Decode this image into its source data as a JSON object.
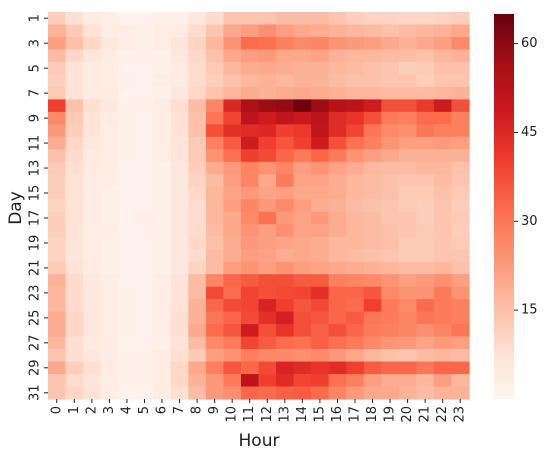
{
  "chart_data": {
    "type": "heatmap",
    "xlabel": "Hour",
    "ylabel": "Day",
    "x_categories": [
      "0",
      "1",
      "2",
      "3",
      "4",
      "5",
      "6",
      "7",
      "8",
      "9",
      "10",
      "11",
      "12",
      "13",
      "14",
      "15",
      "16",
      "17",
      "18",
      "19",
      "20",
      "21",
      "22",
      "23"
    ],
    "y_categories": [
      "1",
      "2",
      "3",
      "4",
      "5",
      "6",
      "7",
      "8",
      "9",
      "10",
      "11",
      "12",
      "13",
      "14",
      "15",
      "16",
      "17",
      "18",
      "19",
      "20",
      "21",
      "22",
      "23",
      "24",
      "25",
      "26",
      "27",
      "28",
      "29",
      "30",
      "31"
    ],
    "y_tick_labels_shown": [
      "1",
      "3",
      "5",
      "7",
      "9",
      "11",
      "13",
      "15",
      "17",
      "19",
      "21",
      "23",
      "25",
      "27",
      "29",
      "31"
    ],
    "colorbar": {
      "vmin": 0,
      "vmax": 65,
      "ticks": [
        15,
        30,
        45,
        60
      ],
      "colormap": "Reds"
    },
    "values": [
      [
        12,
        8,
        4,
        3,
        1,
        1,
        2,
        2,
        5,
        9,
        14,
        14,
        14,
        16,
        16,
        16,
        14,
        12,
        11,
        11,
        10,
        10,
        11,
        12
      ],
      [
        18,
        13,
        7,
        3,
        3,
        2,
        3,
        4,
        9,
        14,
        20,
        22,
        25,
        22,
        20,
        19,
        18,
        17,
        16,
        15,
        16,
        17,
        18,
        20
      ],
      [
        22,
        15,
        10,
        5,
        3,
        2,
        3,
        6,
        11,
        17,
        24,
        32,
        31,
        28,
        26,
        27,
        24,
        23,
        22,
        20,
        18,
        20,
        22,
        26
      ],
      [
        16,
        10,
        6,
        4,
        2,
        2,
        2,
        5,
        10,
        15,
        20,
        22,
        23,
        20,
        20,
        21,
        18,
        17,
        17,
        16,
        16,
        15,
        17,
        18
      ],
      [
        13,
        7,
        4,
        3,
        1,
        1,
        2,
        4,
        9,
        13,
        17,
        19,
        20,
        19,
        18,
        18,
        17,
        16,
        15,
        14,
        12,
        13,
        15,
        15
      ],
      [
        12,
        7,
        4,
        3,
        2,
        1,
        3,
        4,
        9,
        12,
        15,
        17,
        18,
        17,
        18,
        18,
        16,
        15,
        15,
        14,
        14,
        12,
        14,
        14
      ],
      [
        13,
        7,
        4,
        4,
        1,
        1,
        2,
        5,
        10,
        14,
        17,
        19,
        18,
        19,
        20,
        19,
        18,
        17,
        17,
        16,
        16,
        16,
        17,
        18
      ],
      [
        40,
        15,
        8,
        5,
        2,
        2,
        4,
        8,
        16,
        27,
        45,
        55,
        58,
        59,
        64,
        58,
        53,
        52,
        48,
        37,
        37,
        41,
        48,
        37
      ],
      [
        26,
        13,
        7,
        4,
        2,
        1,
        3,
        7,
        15,
        30,
        39,
        52,
        48,
        51,
        49,
        52,
        44,
        42,
        37,
        29,
        28,
        32,
        32,
        28
      ],
      [
        23,
        12,
        6,
        3,
        2,
        1,
        3,
        7,
        15,
        37,
        43,
        44,
        45,
        40,
        41,
        51,
        44,
        39,
        30,
        26,
        25,
        30,
        28,
        28
      ],
      [
        19,
        10,
        5,
        3,
        2,
        1,
        3,
        6,
        13,
        28,
        35,
        48,
        40,
        36,
        40,
        48,
        37,
        31,
        28,
        24,
        22,
        22,
        23,
        22
      ],
      [
        15,
        9,
        4,
        3,
        2,
        1,
        3,
        6,
        13,
        24,
        31,
        40,
        38,
        33,
        29,
        33,
        29,
        24,
        22,
        20,
        18,
        18,
        18,
        18
      ],
      [
        13,
        8,
        4,
        3,
        1,
        1,
        2,
        5,
        12,
        19,
        23,
        27,
        24,
        27,
        22,
        24,
        21,
        19,
        17,
        16,
        16,
        17,
        17,
        15
      ],
      [
        12,
        7,
        3,
        3,
        1,
        1,
        2,
        5,
        11,
        16,
        22,
        27,
        20,
        29,
        21,
        21,
        19,
        17,
        16,
        15,
        14,
        14,
        16,
        14
      ],
      [
        12,
        7,
        3,
        2,
        1,
        1,
        2,
        5,
        10,
        17,
        21,
        23,
        21,
        22,
        20,
        20,
        19,
        17,
        16,
        15,
        13,
        13,
        15,
        13
      ],
      [
        11,
        7,
        3,
        2,
        1,
        1,
        2,
        5,
        9,
        17,
        22,
        27,
        23,
        26,
        22,
        19,
        18,
        16,
        15,
        14,
        13,
        12,
        14,
        12
      ],
      [
        12,
        7,
        3,
        2,
        1,
        3,
        2,
        5,
        9,
        17,
        20,
        26,
        31,
        23,
        21,
        23,
        19,
        17,
        16,
        14,
        14,
        12,
        14,
        13
      ],
      [
        12,
        6,
        3,
        3,
        1,
        1,
        2,
        5,
        9,
        16,
        20,
        24,
        22,
        25,
        21,
        21,
        19,
        17,
        16,
        15,
        14,
        13,
        14,
        12
      ],
      [
        11,
        6,
        3,
        2,
        1,
        1,
        2,
        5,
        10,
        15,
        19,
        23,
        22,
        21,
        20,
        19,
        17,
        17,
        16,
        15,
        13,
        13,
        14,
        13
      ],
      [
        11,
        6,
        3,
        2,
        1,
        1,
        2,
        5,
        9,
        16,
        19,
        22,
        21,
        19,
        20,
        19,
        17,
        16,
        15,
        14,
        13,
        13,
        14,
        14
      ],
      [
        13,
        7,
        4,
        2,
        1,
        1,
        2,
        5,
        11,
        16,
        22,
        24,
        22,
        24,
        22,
        21,
        20,
        19,
        18,
        17,
        16,
        16,
        17,
        15
      ],
      [
        18,
        9,
        5,
        3,
        1,
        1,
        3,
        7,
        16,
        27,
        33,
        35,
        37,
        37,
        35,
        35,
        28,
        27,
        26,
        24,
        22,
        23,
        25,
        22
      ],
      [
        17,
        9,
        5,
        3,
        2,
        1,
        3,
        7,
        16,
        38,
        32,
        39,
        37,
        38,
        39,
        43,
        33,
        33,
        36,
        26,
        24,
        24,
        29,
        24
      ],
      [
        17,
        9,
        5,
        3,
        2,
        1,
        3,
        7,
        18,
        33,
        38,
        39,
        46,
        40,
        36,
        38,
        33,
        32,
        40,
        29,
        26,
        32,
        29,
        28
      ],
      [
        19,
        10,
        5,
        3,
        2,
        1,
        3,
        8,
        18,
        30,
        33,
        38,
        43,
        47,
        37,
        36,
        33,
        35,
        30,
        29,
        27,
        30,
        29,
        28
      ],
      [
        19,
        10,
        5,
        3,
        2,
        1,
        3,
        8,
        20,
        32,
        36,
        48,
        37,
        42,
        37,
        34,
        37,
        33,
        29,
        28,
        27,
        25,
        27,
        30
      ],
      [
        17,
        8,
        4,
        3,
        1,
        1,
        2,
        7,
        16,
        26,
        29,
        39,
        35,
        32,
        31,
        34,
        31,
        29,
        26,
        24,
        23,
        21,
        23,
        22
      ],
      [
        14,
        8,
        5,
        3,
        2,
        2,
        4,
        8,
        13,
        22,
        24,
        28,
        26,
        26,
        25,
        26,
        23,
        20,
        17,
        15,
        14,
        16,
        17,
        16
      ],
      [
        20,
        12,
        8,
        4,
        2,
        2,
        4,
        10,
        20,
        28,
        36,
        33,
        38,
        46,
        44,
        42,
        44,
        40,
        35,
        33,
        33,
        30,
        33,
        33
      ],
      [
        14,
        9,
        6,
        3,
        2,
        2,
        4,
        10,
        18,
        23,
        29,
        52,
        40,
        44,
        39,
        40,
        31,
        28,
        22,
        19,
        19,
        17,
        22,
        17
      ],
      [
        14,
        10,
        7,
        3,
        1,
        1,
        3,
        8,
        16,
        23,
        25,
        33,
        32,
        34,
        35,
        32,
        27,
        23,
        20,
        20,
        18,
        16,
        18,
        18
      ]
    ]
  }
}
